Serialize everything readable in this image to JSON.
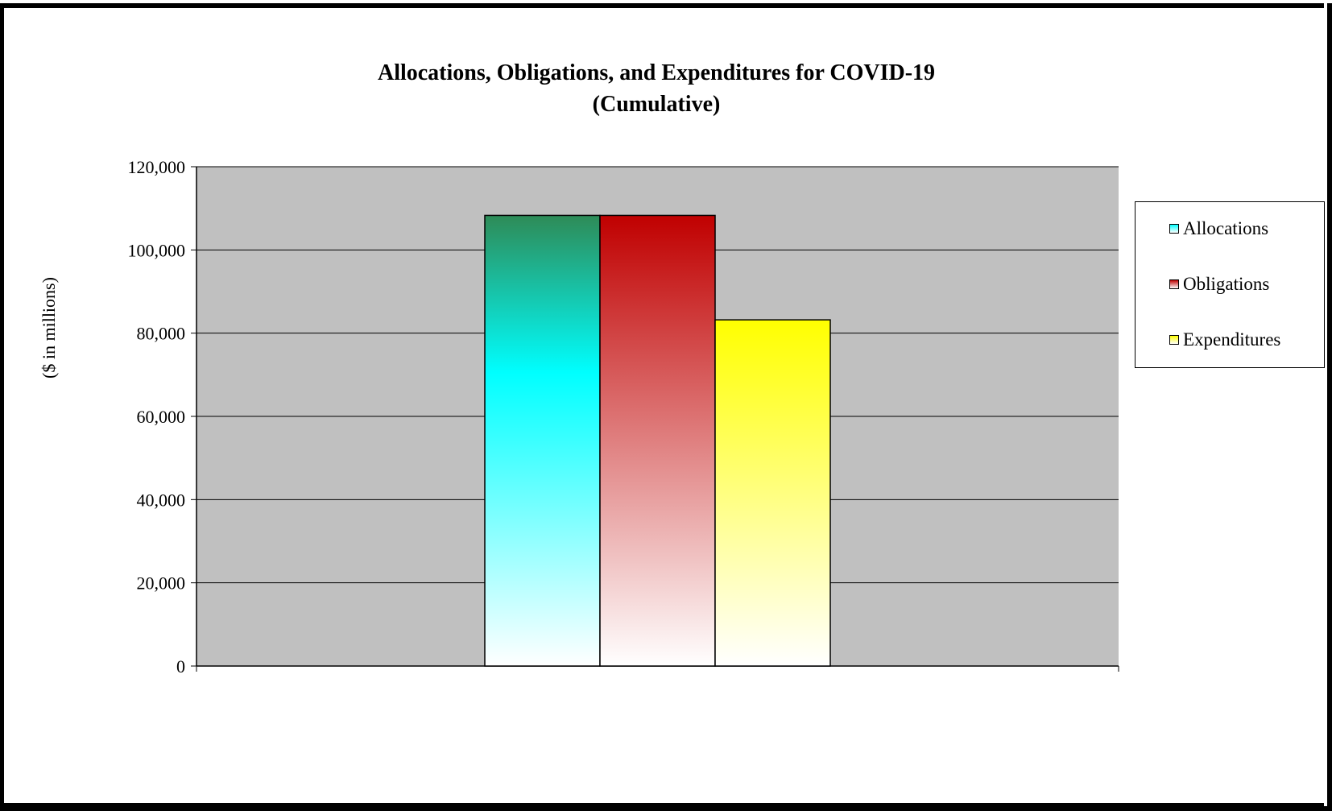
{
  "chart_data": {
    "type": "bar",
    "title": "Allocations, Obligations, and Expenditures for COVID-19",
    "subtitle": "(Cumulative)",
    "xlabel": "",
    "ylabel": "($ in millions)",
    "ylim": [
      0,
      120000
    ],
    "yticks": [
      0,
      20000,
      40000,
      60000,
      80000,
      100000,
      120000
    ],
    "ytick_labels": [
      "0",
      "20,000",
      "40,000",
      "60,000",
      "80,000",
      "100,000",
      "120,000"
    ],
    "categories": [
      ""
    ],
    "series": [
      {
        "name": "Allocations",
        "values": [
          108300
        ],
        "color_top": "#2E8B57",
        "color_mid": "#00FFFF",
        "color_bottom": "#FFFFFF"
      },
      {
        "name": "Obligations",
        "values": [
          108300
        ],
        "color_top": "#C00000",
        "color_bottom": "#FFFFFF"
      },
      {
        "name": "Expenditures",
        "values": [
          83200
        ],
        "color_top": "#FFFF00",
        "color_bottom": "#FFFFFF"
      }
    ],
    "grid": true,
    "plot_background": "#C0C0C0",
    "legend_position": "right"
  }
}
